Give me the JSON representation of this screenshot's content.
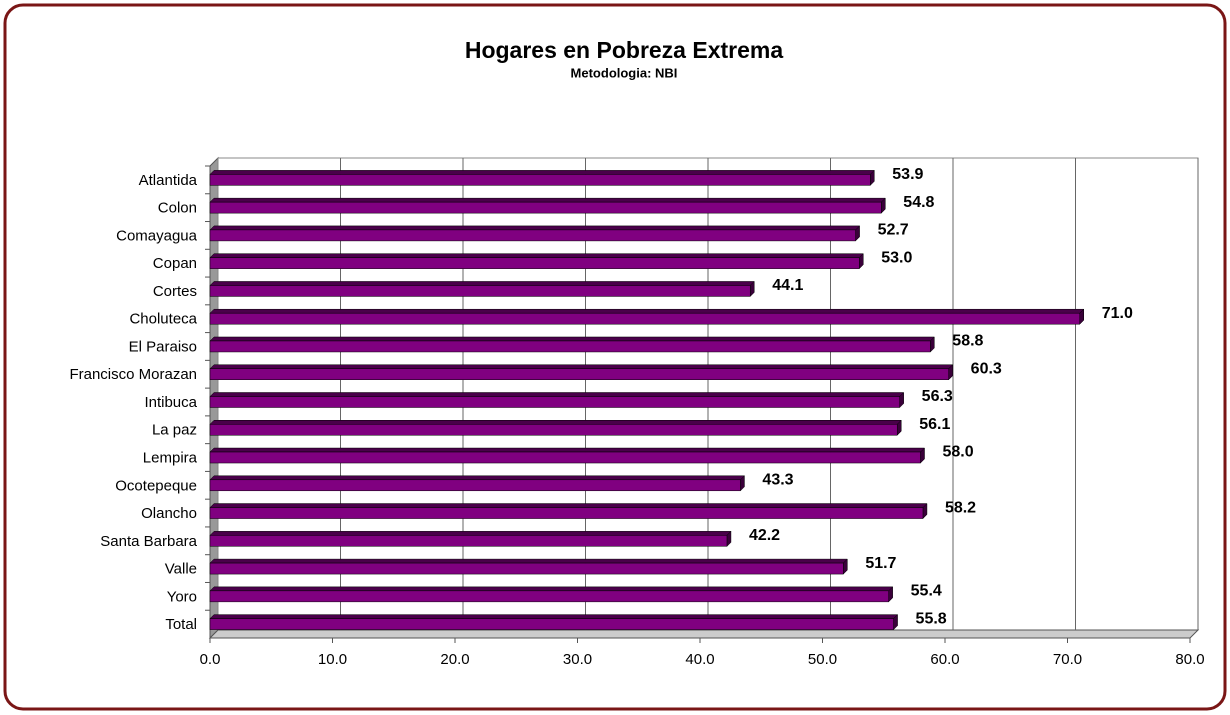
{
  "chart_data": {
    "type": "bar",
    "orientation": "horizontal",
    "title": "Hogares en Pobreza Extrema",
    "subtitle": "Metodologia: NBI",
    "categories": [
      "Atlantida",
      "Colon",
      "Comayagua",
      "Copan",
      "Cortes",
      "Choluteca",
      "El Paraiso",
      "Francisco Morazan",
      "Intibuca",
      "La paz",
      "Lempira",
      "Ocotepeque",
      "Olancho",
      "Santa Barbara",
      "Valle",
      "Yoro",
      "Total"
    ],
    "values": [
      53.9,
      54.8,
      52.7,
      53.0,
      44.1,
      71.0,
      58.8,
      60.3,
      56.3,
      56.1,
      58.0,
      43.3,
      58.2,
      42.2,
      51.7,
      55.4,
      55.8
    ],
    "value_labels": [
      "53.9",
      "54.8",
      "52.7",
      "53.0",
      "44.1",
      "71.0",
      "58.8",
      "60.3",
      "56.3",
      "56.1",
      "58.0",
      "43.3",
      "58.2",
      "42.2",
      "51.7",
      "55.4",
      "55.8"
    ],
    "color": "#800080",
    "xlim": [
      0,
      80
    ],
    "xticks": [
      {
        "value": 0,
        "label": "0.0"
      },
      {
        "value": 10,
        "label": "10.0"
      },
      {
        "value": 20,
        "label": "20.0"
      },
      {
        "value": 30,
        "label": "30.0"
      },
      {
        "value": 40,
        "label": "40.0"
      },
      {
        "value": 50,
        "label": "50.0"
      },
      {
        "value": 60,
        "label": "60.0"
      },
      {
        "value": 70,
        "label": "70.0"
      },
      {
        "value": 80,
        "label": "80.0"
      }
    ],
    "grid": true
  }
}
